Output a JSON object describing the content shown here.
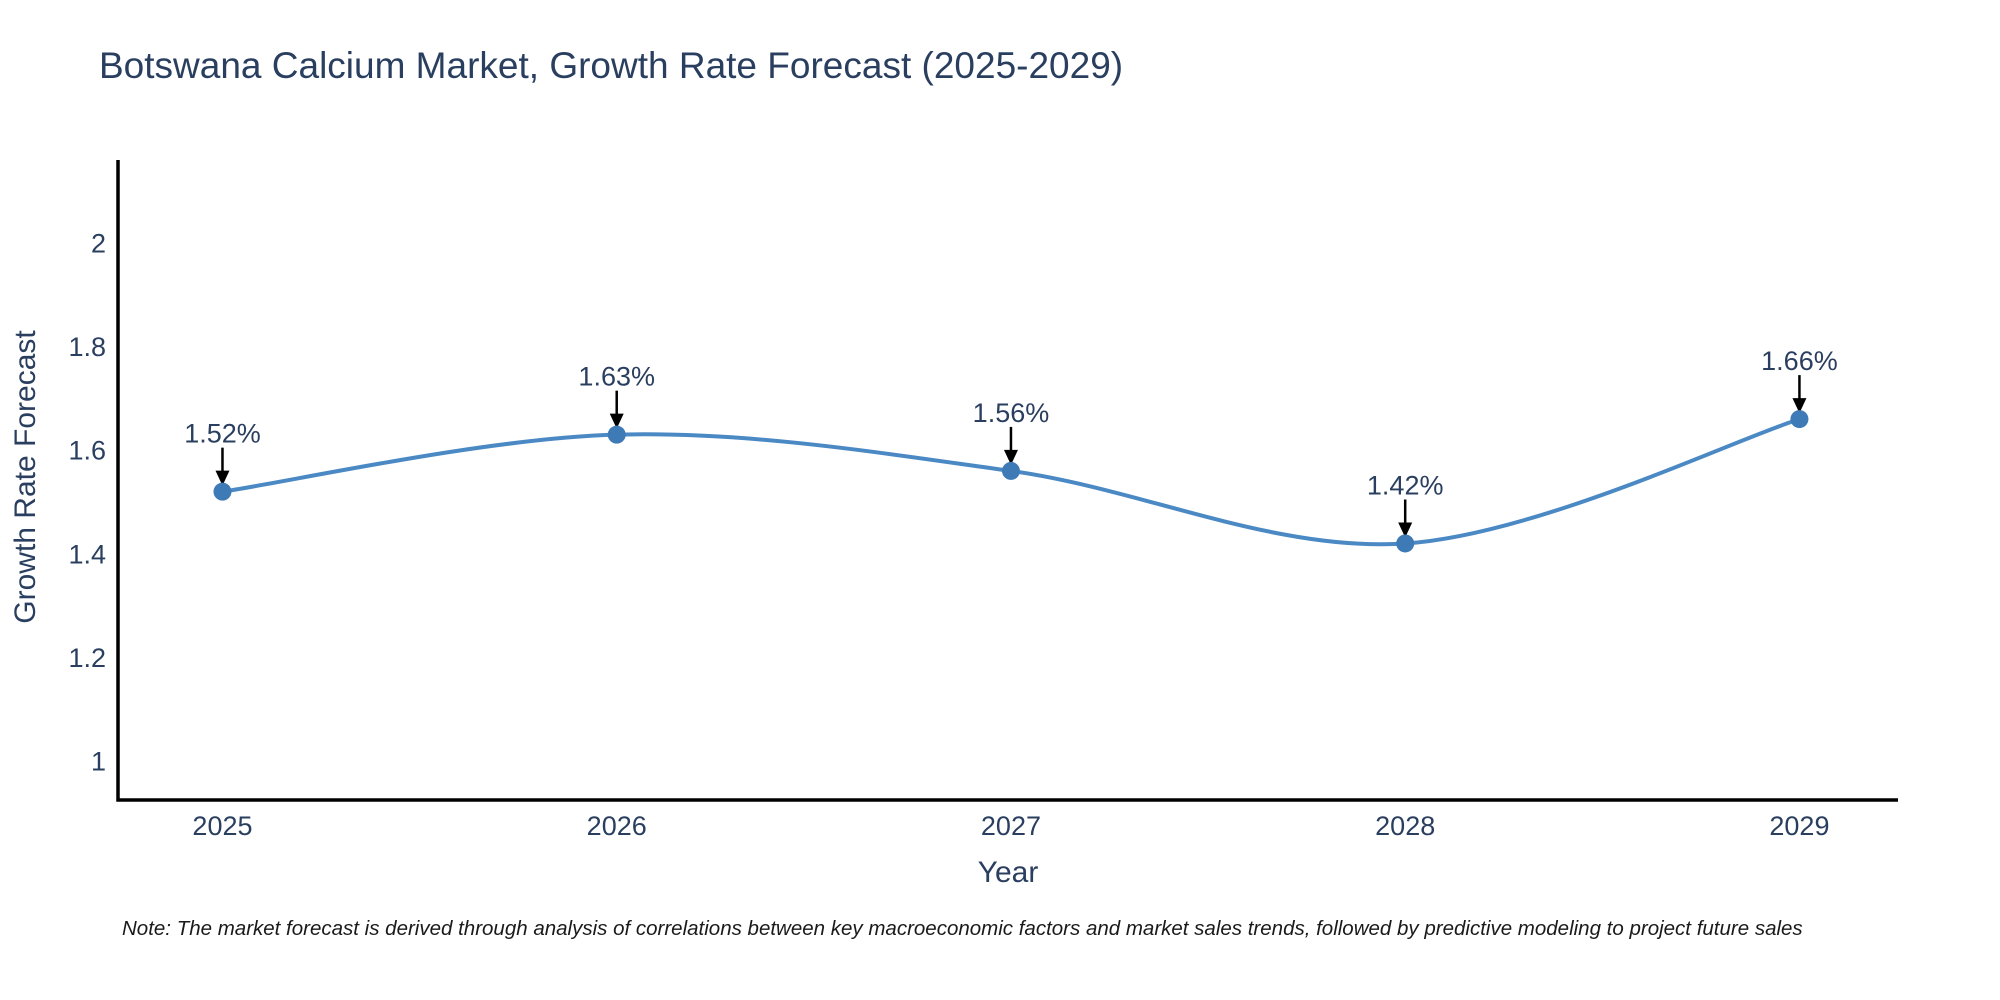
{
  "title": "Botswana Calcium Market, Growth Rate Forecast (2025-2029)",
  "note": "Note: The market forecast is derived through analysis of correlations between key macroeconomic factors and market sales trends, followed by predictive modeling to project future sales",
  "chart_data": {
    "type": "line",
    "title": "Botswana Calcium Market, Growth Rate Forecast (2025-2029)",
    "xlabel": "Year",
    "ylabel": "Growth Rate Forecast",
    "x": [
      2025,
      2026,
      2027,
      2028,
      2029
    ],
    "series": [
      {
        "name": "Growth Rate Forecast",
        "values": [
          1.52,
          1.63,
          1.56,
          1.42,
          1.66
        ]
      }
    ],
    "point_labels": [
      "1.52%",
      "1.63%",
      "1.56%",
      "1.42%",
      "1.66%"
    ],
    "xticks": [
      "2025",
      "2026",
      "2027",
      "2028",
      "2029"
    ],
    "yticks": [
      "1",
      "1.2",
      "1.4",
      "1.6",
      "1.8",
      "2"
    ],
    "ytick_values": [
      1,
      1.2,
      1.4,
      1.6,
      1.8,
      2
    ],
    "xlim": [
      2024.735,
      2029.25
    ],
    "ylim": [
      0.925,
      2.16
    ],
    "grid": false,
    "legend": "none",
    "line_shape": "spline",
    "colors": {
      "line": "#4a89c4",
      "marker": "#3e7ab6",
      "axis": "#000000",
      "text": "#2a3f5f",
      "annotation_arrow": "#000000",
      "background": "#ffffff"
    }
  }
}
